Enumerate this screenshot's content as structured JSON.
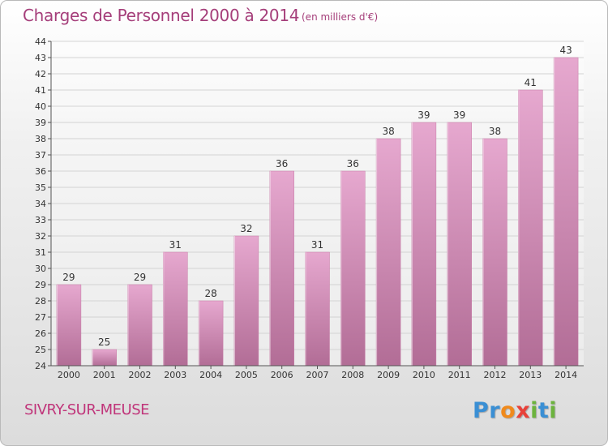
{
  "header": {
    "title": "Charges de Personnel 2000 à 2014",
    "subtitle": "(en milliers d'€)"
  },
  "footer": {
    "town": "SIVRY-SUR-MEUSE",
    "logo_letters": [
      {
        "ch": "P",
        "color": "#3a8fd4"
      },
      {
        "ch": "r",
        "color": "#3a8fd4"
      },
      {
        "ch": "o",
        "color": "#f08a1c"
      },
      {
        "ch": "x",
        "color": "#e8413a"
      },
      {
        "ch": "i",
        "color": "#6cb33e"
      },
      {
        "ch": "t",
        "color": "#3a8fd4"
      },
      {
        "ch": "i",
        "color": "#6cb33e"
      }
    ]
  },
  "chart_data": {
    "type": "bar",
    "title": "Charges de Personnel 2000 à 2014",
    "subtitle": "(en milliers d'€)",
    "categories": [
      "2000",
      "2001",
      "2002",
      "2003",
      "2004",
      "2005",
      "2006",
      "2007",
      "2008",
      "2009",
      "2010",
      "2011",
      "2012",
      "2013",
      "2014"
    ],
    "values": [
      29,
      25,
      29,
      31,
      28,
      32,
      36,
      31,
      36,
      38,
      39,
      39,
      38,
      41,
      43
    ],
    "ylim": [
      24,
      44
    ],
    "yticks": [
      24,
      25,
      26,
      27,
      28,
      29,
      30,
      31,
      32,
      33,
      34,
      35,
      36,
      37,
      38,
      39,
      40,
      41,
      42,
      43,
      44
    ],
    "grid": "horizontal",
    "bar_color_top": "#e6a8cf",
    "bar_color_bottom": "#b26d96"
  }
}
